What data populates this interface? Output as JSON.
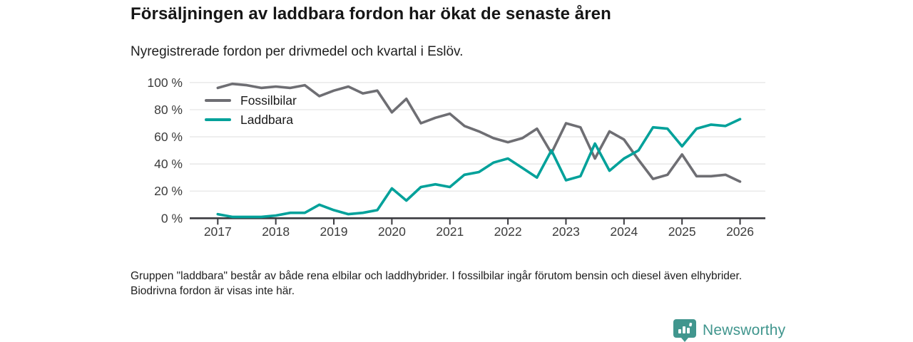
{
  "header": {
    "title": "Försäljningen av laddbara fordon har ökat de senaste åren",
    "subtitle": "Nyregistrerade fordon per drivmedel och kvartal i Eslöv."
  },
  "chart_data": {
    "type": "line",
    "x_unit": "quarter",
    "x_year_ticks": [
      "2017",
      "2018",
      "2019",
      "2020",
      "2021",
      "2022",
      "2023",
      "2024",
      "2025",
      "2026"
    ],
    "points_per_year": 4,
    "x_quarters": [
      "2017 Q1",
      "2017 Q2",
      "2017 Q3",
      "2017 Q4",
      "2018 Q1",
      "2018 Q2",
      "2018 Q3",
      "2018 Q4",
      "2019 Q1",
      "2019 Q2",
      "2019 Q3",
      "2019 Q4",
      "2020 Q1",
      "2020 Q2",
      "2020 Q3",
      "2020 Q4",
      "2021 Q1",
      "2021 Q2",
      "2021 Q3",
      "2021 Q4",
      "2022 Q1",
      "2022 Q2",
      "2022 Q3",
      "2022 Q4",
      "2023 Q1",
      "2023 Q2",
      "2023 Q3",
      "2023 Q4",
      "2024 Q1",
      "2024 Q2",
      "2024 Q3",
      "2024 Q4",
      "2025 Q1",
      "2025 Q2",
      "2025 Q3",
      "2025 Q4",
      "2026 Q1"
    ],
    "series": [
      {
        "name": "Fossilbilar",
        "color": "#6e6e73",
        "values": [
          96,
          99,
          98,
          96,
          97,
          96,
          98,
          90,
          94,
          97,
          92,
          94,
          78,
          88,
          70,
          74,
          77,
          68,
          64,
          59,
          56,
          59,
          66,
          48,
          70,
          67,
          44,
          64,
          58,
          43,
          29,
          32,
          47,
          31,
          31,
          32,
          27
        ]
      },
      {
        "name": "Laddbara",
        "color": "#00a19a",
        "values": [
          3,
          1,
          1,
          1,
          2,
          4,
          4,
          10,
          6,
          3,
          4,
          6,
          22,
          13,
          23,
          25,
          23,
          32,
          34,
          41,
          44,
          37,
          30,
          50,
          28,
          31,
          55,
          35,
          44,
          50,
          67,
          66,
          53,
          66,
          69,
          68,
          73
        ]
      }
    ],
    "ylim": [
      0,
      100
    ],
    "y_ticks": [
      0,
      20,
      40,
      60,
      80,
      100
    ],
    "y_tick_suffix": " %",
    "grid": true,
    "legend_position": "inside-top-left"
  },
  "footnote": {
    "text": "Gruppen \"laddbara\" består av både rena elbilar och laddhybrider. I fossilbilar ingår förutom bensin och diesel även elhybrider. Biodrivna fordon är visas inte här."
  },
  "logo": {
    "text": "Newsworthy",
    "color": "#41968e",
    "icon": "bar-chart-badge-icon"
  },
  "theme": {
    "grid_color": "#e3e3e3",
    "axis_color": "#3b3b40",
    "tick_label_color": "#3c3c3c"
  }
}
